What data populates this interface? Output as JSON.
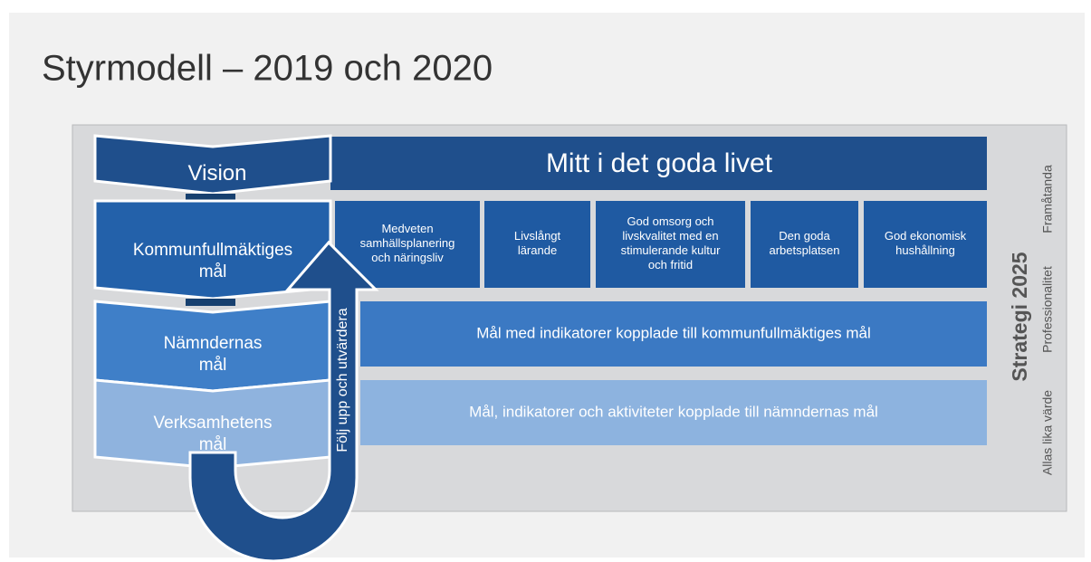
{
  "title": "Styrmodell – 2019 och 2020",
  "levels": [
    {
      "label": [
        "Vision"
      ],
      "content": "Mitt i det goda livet"
    },
    {
      "label": [
        "Kommunfullmäktiges",
        "mål"
      ],
      "goals": [
        [
          "Medveten",
          "samhällsplanering",
          "och näringsliv"
        ],
        [
          "Livslångt",
          "lärande"
        ],
        [
          "God omsorg och",
          "livskvalitet med en",
          "stimulerande kultur",
          "och fritid"
        ],
        [
          "Den goda",
          "arbetsplatsen"
        ],
        [
          "God ekonomisk",
          "hushållning"
        ]
      ]
    },
    {
      "label": [
        "Nämndernas",
        "mål"
      ],
      "content": "Mål med indikatorer kopplade till kommunfullmäktiges mål"
    },
    {
      "label": [
        "Verksamhetens",
        "mål"
      ],
      "content": "Mål, indikatorer och aktiviteter kopplade till nämndernas mål"
    }
  ],
  "arrow": "Följ upp och utvärdera",
  "strategy": {
    "title": "Strategi 2025",
    "values": [
      "Allas lika värde",
      "Professionalitet",
      "Framåtanda"
    ]
  }
}
